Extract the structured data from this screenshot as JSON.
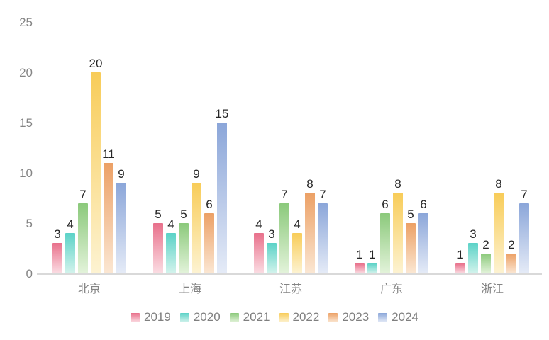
{
  "chart_data": {
    "type": "bar",
    "title": "",
    "xlabel": "",
    "ylabel": "",
    "categories": [
      "北京",
      "上海",
      "江苏",
      "广东",
      "浙江"
    ],
    "series": [
      {
        "name": "2019",
        "color_top": "#e8708b",
        "color_bottom": "#fbdde3",
        "values": [
          3,
          5,
          4,
          1,
          1
        ]
      },
      {
        "name": "2020",
        "color_top": "#5bd2c7",
        "color_bottom": "#d3f3ec",
        "values": [
          4,
          4,
          3,
          1,
          3
        ]
      },
      {
        "name": "2021",
        "color_top": "#8bc97b",
        "color_bottom": "#e3f3da",
        "values": [
          7,
          5,
          7,
          6,
          2
        ]
      },
      {
        "name": "2022",
        "color_top": "#f8cc58",
        "color_bottom": "#fdf3d2",
        "values": [
          20,
          9,
          4,
          8,
          8
        ]
      },
      {
        "name": "2023",
        "color_top": "#eca065",
        "color_bottom": "#fbe7d3",
        "values": [
          11,
          6,
          8,
          5,
          2
        ]
      },
      {
        "name": "2024",
        "color_top": "#8ba6d9",
        "color_bottom": "#e5ebf7",
        "values": [
          9,
          15,
          7,
          6,
          7
        ]
      }
    ],
    "ylim": [
      0,
      25
    ],
    "yticks": [
      0,
      5,
      10,
      15,
      20,
      25
    ],
    "grid": false,
    "legend_position": "bottom",
    "axis_line_color": "#d9d9d9",
    "tick_label_color": "#858585",
    "data_label_color": "#262626"
  }
}
